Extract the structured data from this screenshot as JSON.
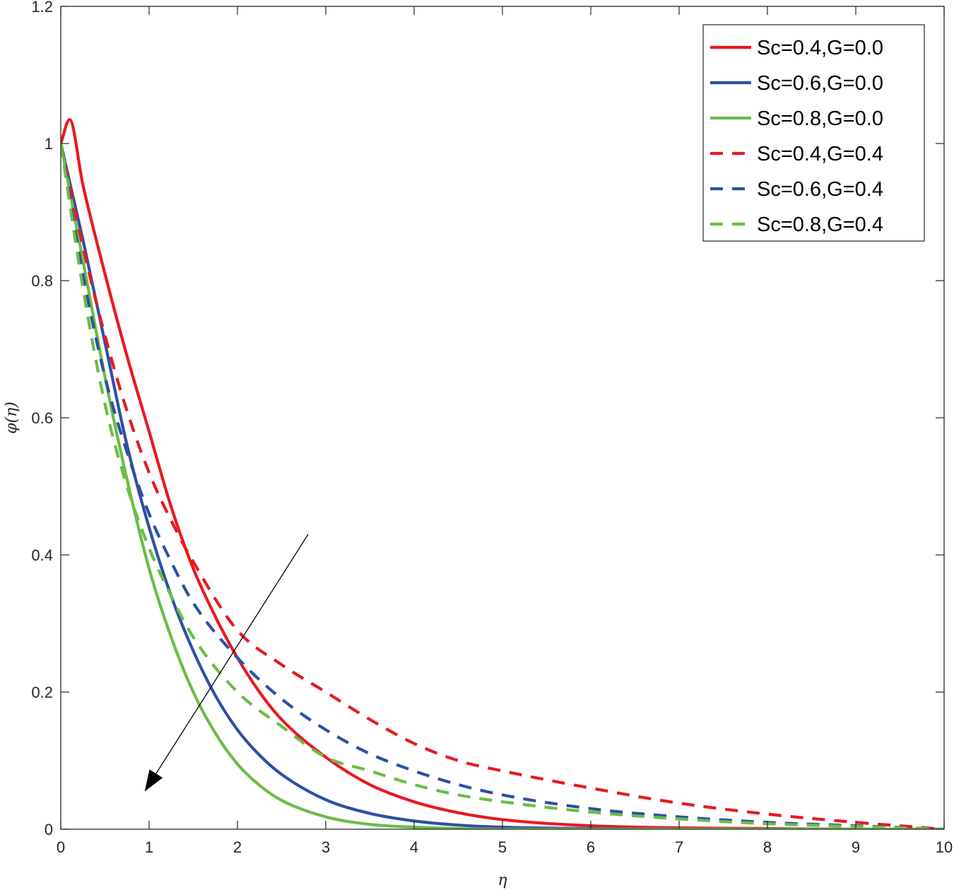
{
  "chart_data": {
    "type": "line",
    "title": "",
    "xlabel": "η",
    "ylabel": "φ(η)",
    "xlim": [
      0,
      10
    ],
    "ylim": [
      0,
      1.2
    ],
    "xticks": [
      0,
      1,
      2,
      3,
      4,
      5,
      6,
      7,
      8,
      9,
      10
    ],
    "yticks": [
      0,
      0.2,
      0.4,
      0.6,
      0.8,
      1,
      1.2
    ],
    "xtick_labels": [
      "0",
      "1",
      "2",
      "3",
      "4",
      "5",
      "6",
      "7",
      "8",
      "9",
      "10"
    ],
    "ytick_labels": [
      "0",
      "0.2",
      "0.4",
      "0.6",
      "0.8",
      "1",
      "1.2"
    ],
    "grid": false,
    "legend_position": "top-right",
    "series": [
      {
        "name": "Sc=0.4,G=0.0",
        "color": "#e8191f",
        "style": "solid",
        "x": [
          0,
          0.1,
          0.25,
          0.5,
          0.75,
          1.0,
          1.25,
          1.5,
          1.75,
          2.0,
          2.25,
          2.5,
          3.0,
          3.5,
          4.0,
          4.5,
          5.0,
          6.0,
          7.0,
          8.0,
          9.0,
          10.0
        ],
        "y": [
          1.0,
          1.035,
          0.94,
          0.81,
          0.69,
          0.58,
          0.47,
          0.38,
          0.31,
          0.25,
          0.2,
          0.16,
          0.105,
          0.065,
          0.04,
          0.024,
          0.014,
          0.005,
          0.002,
          0.001,
          0.0,
          0.0
        ]
      },
      {
        "name": "Sc=0.6,G=0.0",
        "color": "#2f4fa4",
        "style": "solid",
        "x": [
          0,
          0.25,
          0.5,
          0.75,
          1.0,
          1.25,
          1.5,
          1.75,
          2.0,
          2.25,
          2.5,
          3.0,
          3.5,
          4.0,
          4.5,
          5.0,
          6.0,
          7.0,
          8.0,
          9.0,
          10.0
        ],
        "y": [
          1.0,
          0.86,
          0.71,
          0.56,
          0.44,
          0.34,
          0.26,
          0.195,
          0.145,
          0.108,
          0.08,
          0.043,
          0.023,
          0.012,
          0.006,
          0.003,
          0.001,
          0.0,
          0.0,
          0.0,
          0.0
        ]
      },
      {
        "name": "Sc=0.8,G=0.0",
        "color": "#6abd45",
        "style": "solid",
        "x": [
          0,
          0.25,
          0.5,
          0.75,
          1.0,
          1.25,
          1.5,
          1.75,
          2.0,
          2.25,
          2.5,
          3.0,
          3.5,
          4.0,
          4.5,
          5.0,
          6.0,
          7.0,
          8.0,
          9.0,
          10.0
        ],
        "y": [
          1.0,
          0.83,
          0.66,
          0.51,
          0.38,
          0.28,
          0.2,
          0.14,
          0.095,
          0.064,
          0.042,
          0.018,
          0.007,
          0.003,
          0.001,
          0.0,
          0.0,
          0.0,
          0.0,
          0.0,
          0.0
        ]
      },
      {
        "name": "Sc=0.4,G=0.4",
        "color": "#e8191f",
        "style": "dashed",
        "x": [
          0,
          0.25,
          0.5,
          0.75,
          1.0,
          1.25,
          1.5,
          2.0,
          2.5,
          3.0,
          3.5,
          4.0,
          4.5,
          5.0,
          6.0,
          7.0,
          8.0,
          9.0,
          10.0
        ],
        "y": [
          1.0,
          0.85,
          0.72,
          0.61,
          0.52,
          0.45,
          0.39,
          0.29,
          0.24,
          0.2,
          0.16,
          0.125,
          0.1,
          0.085,
          0.06,
          0.038,
          0.022,
          0.01,
          0.0
        ]
      },
      {
        "name": "Sc=0.6,G=0.4",
        "color": "#2f4fa4",
        "style": "dashed",
        "x": [
          0,
          0.25,
          0.5,
          0.75,
          1.0,
          1.25,
          1.5,
          2.0,
          2.5,
          3.0,
          3.5,
          4.0,
          4.5,
          5.0,
          6.0,
          7.0,
          8.0,
          9.0,
          10.0
        ],
        "y": [
          1.0,
          0.81,
          0.66,
          0.55,
          0.46,
          0.39,
          0.33,
          0.25,
          0.19,
          0.145,
          0.11,
          0.085,
          0.065,
          0.05,
          0.03,
          0.018,
          0.01,
          0.005,
          0.0
        ]
      },
      {
        "name": "Sc=0.8,G=0.4",
        "color": "#6abd45",
        "style": "dashed",
        "x": [
          0,
          0.25,
          0.5,
          0.75,
          1.0,
          1.25,
          1.5,
          2.0,
          2.5,
          3.0,
          3.5,
          4.0,
          4.5,
          5.0,
          6.0,
          7.0,
          8.0,
          9.0,
          10.0
        ],
        "y": [
          1.0,
          0.79,
          0.62,
          0.5,
          0.41,
          0.34,
          0.28,
          0.2,
          0.15,
          0.105,
          0.085,
          0.065,
          0.05,
          0.04,
          0.025,
          0.015,
          0.008,
          0.004,
          0.0
        ]
      }
    ],
    "annotations": [
      {
        "type": "arrow",
        "from": [
          2.8,
          0.43
        ],
        "to": [
          0.95,
          0.055
        ],
        "color": "#000000"
      }
    ]
  }
}
